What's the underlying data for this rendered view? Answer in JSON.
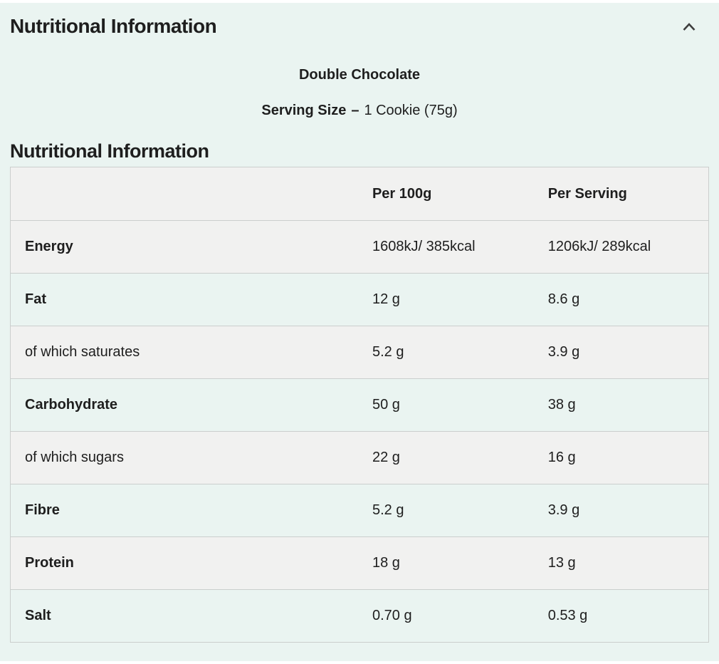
{
  "panel": {
    "title": "Nutritional Information",
    "collapse_icon": "chevron-up-icon",
    "flavour": "Double Chocolate",
    "serving": {
      "label": "Serving Size",
      "separator": "–",
      "value": "1 Cookie (75g)"
    },
    "section_heading": "Nutritional Information"
  },
  "table": {
    "columns": [
      "",
      "Per 100g",
      "Per Serving"
    ],
    "rows": [
      {
        "label": "Energy",
        "bold": true,
        "per_100g": "1608kJ/ 385kcal",
        "per_serving": "1206kJ/ 289kcal"
      },
      {
        "label": "Fat",
        "bold": true,
        "per_100g": "12 g",
        "per_serving": "8.6 g"
      },
      {
        "label": "of which saturates",
        "bold": false,
        "per_100g": "5.2 g",
        "per_serving": "3.9 g"
      },
      {
        "label": "Carbohydrate",
        "bold": true,
        "per_100g": "50 g",
        "per_serving": "38 g"
      },
      {
        "label": "of which sugars",
        "bold": false,
        "per_100g": "22 g",
        "per_serving": "16 g"
      },
      {
        "label": "Fibre",
        "bold": true,
        "per_100g": "5.2 g",
        "per_serving": "3.9 g"
      },
      {
        "label": "Protein",
        "bold": true,
        "per_100g": "18 g",
        "per_serving": "13 g"
      },
      {
        "label": "Salt",
        "bold": true,
        "per_100g": "0.70 g",
        "per_serving": "0.53 g"
      }
    ]
  },
  "colors": {
    "panel_bg": "#eaf4f1",
    "row_alt_bg": "#f1f1f0",
    "border": "#cbcecd",
    "text": "#1e1e1e",
    "icon": "#3d3d3d"
  }
}
